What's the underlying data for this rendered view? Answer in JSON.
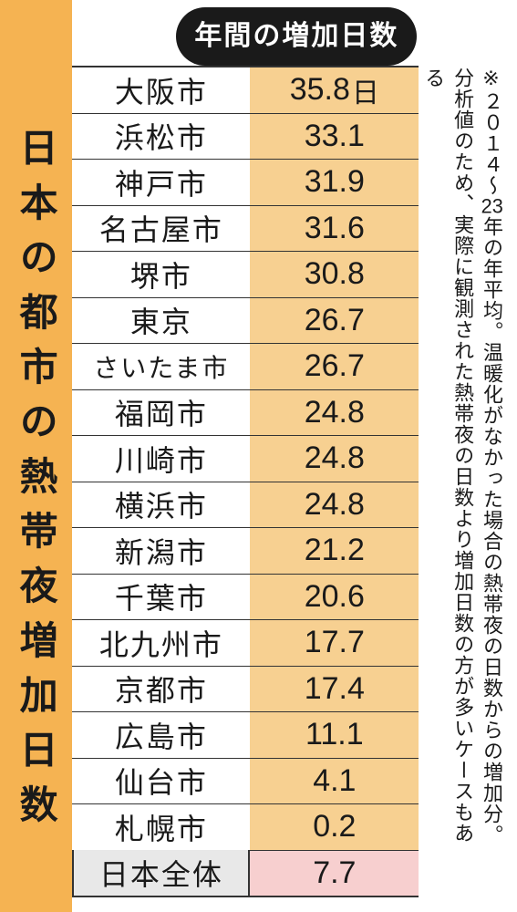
{
  "title": "日本の都市の熱帯夜増加日数",
  "header": "年間の増加日数",
  "note": "※２０１４〜23年の年平均。温暖化がなかった場合の熱帯夜の日数からの増加分。分析値のため、実際に観測された熱帯夜の日数より増加日数の方が多いケースもある",
  "rows": [
    {
      "city": "大阪市",
      "days": "35.8",
      "unit": "日"
    },
    {
      "city": "浜松市",
      "days": "33.1",
      "unit": ""
    },
    {
      "city": "神戸市",
      "days": "31.9",
      "unit": ""
    },
    {
      "city": "名古屋市",
      "days": "31.6",
      "unit": ""
    },
    {
      "city": "堺市",
      "days": "30.8",
      "unit": ""
    },
    {
      "city": "東京",
      "days": "26.7",
      "unit": ""
    },
    {
      "city": "さいたま市",
      "days": "26.7",
      "unit": ""
    },
    {
      "city": "福岡市",
      "days": "24.8",
      "unit": ""
    },
    {
      "city": "川崎市",
      "days": "24.8",
      "unit": ""
    },
    {
      "city": "横浜市",
      "days": "24.8",
      "unit": ""
    },
    {
      "city": "新潟市",
      "days": "21.2",
      "unit": ""
    },
    {
      "city": "千葉市",
      "days": "20.6",
      "unit": ""
    },
    {
      "city": "北九州市",
      "days": "17.7",
      "unit": ""
    },
    {
      "city": "京都市",
      "days": "17.4",
      "unit": ""
    },
    {
      "city": "広島市",
      "days": "11.1",
      "unit": ""
    },
    {
      "city": "仙台市",
      "days": "4.1",
      "unit": ""
    },
    {
      "city": "札幌市",
      "days": "0.2",
      "unit": ""
    }
  ],
  "total": {
    "label": "日本全体",
    "days": "7.7"
  },
  "colors": {
    "title_bg": "#f5b352",
    "days_bg": "#f7d091",
    "header_bg": "#1a1a1a",
    "total_label_bg": "#e8e8e8",
    "total_days_bg": "#f7cfcf",
    "arrow": "#1a1a1a"
  }
}
